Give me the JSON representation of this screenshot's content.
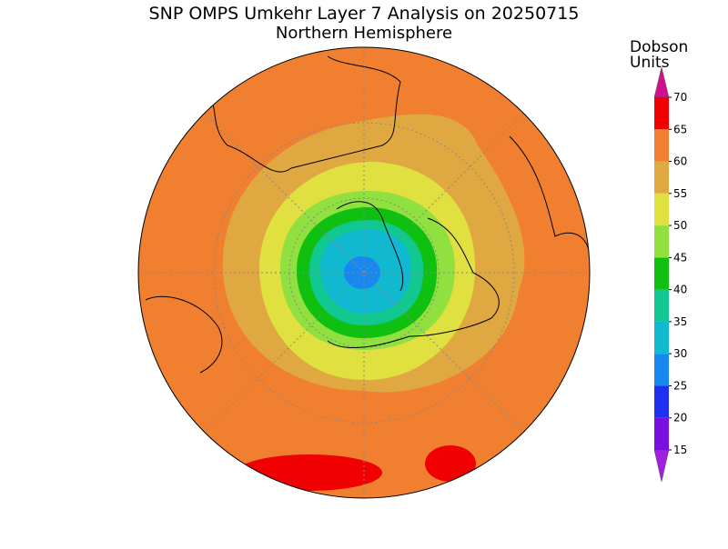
{
  "title": "SNP OMPS Umkehr Layer 7 Analysis on 20250715",
  "subtitle": "Northern Hemisphere",
  "colorbar": {
    "label_lines": [
      "Dobson",
      "Units"
    ],
    "ticks": [
      15,
      20,
      25,
      30,
      35,
      40,
      45,
      50,
      55,
      60,
      65,
      70
    ],
    "colors": [
      "#7a10e0",
      "#2030f0",
      "#1888f0",
      "#10b8d0",
      "#10c890",
      "#10c010",
      "#90e040",
      "#e0e040",
      "#e0a840",
      "#f08030",
      "#f00000"
    ],
    "under_color": "#a020e0",
    "over_color": "#d01090"
  }
}
